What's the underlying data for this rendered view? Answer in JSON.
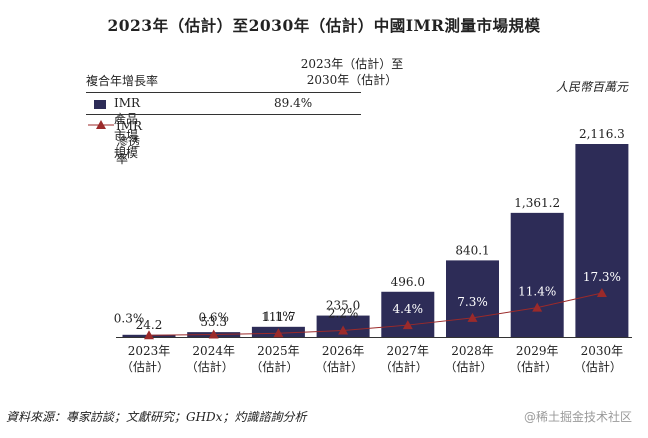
{
  "chart_data": {
    "type": "bar",
    "title": "2023年（估計）至2030年（估計）中國IMR測量市場規模",
    "unit": "人民幣百萬元",
    "categories": [
      [
        "2023年",
        "（估計）"
      ],
      [
        "2024年",
        "（估計）"
      ],
      [
        "2025年",
        "（估計）"
      ],
      [
        "2026年",
        "（估計）"
      ],
      [
        "2027年",
        "（估計）"
      ],
      [
        "2028年",
        "（估計）"
      ],
      [
        "2029年",
        "（估計）"
      ],
      [
        "2030年",
        "（估計）"
      ]
    ],
    "series": [
      {
        "name": "IMR產品市場規模",
        "kind": "bar",
        "color": "#2d2c57",
        "values": [
          24.2,
          53.3,
          111.7,
          235.0,
          496.0,
          840.1,
          1361.2,
          2116.3
        ],
        "labels": [
          "24.2",
          "53.3",
          "111.7",
          "235.0",
          "496.0",
          "840.1",
          "1,361.2",
          "2,116.3"
        ]
      },
      {
        "name": "IMR滲透率",
        "kind": "line",
        "color": "#9b2a2a",
        "values": [
          0.3,
          0.6,
          1.1,
          2.2,
          4.4,
          7.3,
          11.4,
          17.3
        ],
        "labels": [
          "0.3%",
          "0.6%",
          "1.1%",
          "2.2%",
          "4.4%",
          "7.3%",
          "11.4%",
          "17.3%"
        ]
      }
    ],
    "legend": {
      "cagr_label": "複合年增長率",
      "cagr_header": [
        "2023年（估計）至",
        "2030年（估計）"
      ],
      "bar_cagr": "89.4%"
    }
  },
  "source": "資料來源：專家訪談；文獻研究；GHDx；灼識諮詢分析",
  "watermark": "@稀土掘金技术社区"
}
